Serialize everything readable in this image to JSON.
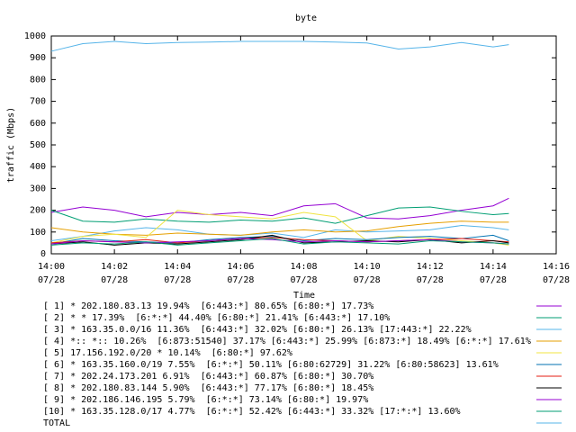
{
  "chart_data": {
    "type": "line",
    "title": "byte",
    "ylabel": "traffic (Mbps)",
    "xlabel": "Time",
    "x": [
      0,
      1,
      2,
      3,
      4,
      5,
      6,
      7,
      8,
      9,
      10,
      11,
      12,
      13,
      14,
      14.5
    ],
    "xlim": [
      0,
      16
    ],
    "xticks": [
      {
        "value": 0,
        "label": "14:00\n07/28"
      },
      {
        "value": 2,
        "label": "14:02\n07/28"
      },
      {
        "value": 4,
        "label": "14:04\n07/28"
      },
      {
        "value": 6,
        "label": "14:06\n07/28"
      },
      {
        "value": 8,
        "label": "14:08\n07/28"
      },
      {
        "value": 10,
        "label": "14:10\n07/28"
      },
      {
        "value": 12,
        "label": "14:12\n07/28"
      },
      {
        "value": 14,
        "label": "14:14\n07/28"
      },
      {
        "value": 16,
        "label": "14:16\n07/28"
      }
    ],
    "ylim": [
      0,
      1000
    ],
    "yticks": [
      0,
      100,
      200,
      300,
      400,
      500,
      600,
      700,
      800,
      900,
      1000
    ],
    "series": [
      {
        "name": "[ 1] * 202.180.83.13 19.94%  [6:443:*] 80.65% [6:80:*] 17.73%",
        "color": "#9400d3",
        "values": [
          190,
          215,
          200,
          170,
          190,
          180,
          190,
          175,
          220,
          230,
          165,
          160,
          175,
          200,
          220,
          255
        ]
      },
      {
        "name": "[ 2] * * 17.39%  [6:*:*] 44.40% [6:80:*] 21.41% [6:443:*] 17.10%",
        "color": "#009e73",
        "values": [
          200,
          150,
          145,
          160,
          150,
          145,
          155,
          150,
          165,
          140,
          175,
          210,
          215,
          195,
          180,
          185
        ]
      },
      {
        "name": "[ 3] * 163.35.0.0/16 11.36%  [6:443:*] 32.02% [6:80:*] 26.13% [17:443:*] 22.22%",
        "color": "#56b4e9",
        "values": [
          60,
          80,
          105,
          120,
          110,
          90,
          85,
          95,
          75,
          110,
          100,
          105,
          110,
          130,
          120,
          110
        ]
      },
      {
        "name": "[ 4] *:: *:: 10.26%  [6:873:51540] 37.17% [6:443:*] 25.99% [6:873:*] 18.49% [6:*:*] 17.61%",
        "color": "#e69f00",
        "values": [
          120,
          100,
          90,
          85,
          95,
          90,
          85,
          100,
          110,
          100,
          105,
          125,
          140,
          150,
          145,
          145
        ]
      },
      {
        "name": "[ 5] 17.156.192.0/20 * 10.14%  [6:80:*] 97.62%",
        "color": "#f0e442",
        "values": [
          50,
          80,
          90,
          75,
          200,
          180,
          170,
          160,
          190,
          170,
          60,
          80,
          70,
          60,
          50,
          40
        ]
      },
      {
        "name": "[ 6] * 163.35.160.0/19 7.55%  [6:*:*] 50.11% [6:80:62729] 31.22% [6:80:58623] 13.61%",
        "color": "#0072b2",
        "values": [
          45,
          70,
          60,
          55,
          50,
          65,
          75,
          80,
          60,
          70,
          65,
          75,
          80,
          70,
          85,
          60
        ]
      },
      {
        "name": "[ 7] * 202.24.173.201 6.91%  [6:443:*] 60.87% [6:80:*] 30.70%",
        "color": "#e51e10",
        "values": [
          50,
          60,
          55,
          65,
          50,
          60,
          70,
          75,
          65,
          60,
          55,
          60,
          65,
          70,
          60,
          55
        ]
      },
      {
        "name": "[ 8] * 202.180.83.144 5.90%  [6:443:*] 77.17% [6:80:*] 18.45%",
        "color": "#000000",
        "values": [
          45,
          55,
          40,
          50,
          45,
          55,
          65,
          85,
          50,
          55,
          60,
          55,
          65,
          50,
          60,
          50
        ]
      },
      {
        "name": "[ 9] * 202.186.146.195 5.79%  [6:*:*] 73.14% [6:80:*] 19.97%",
        "color": "#9400d3",
        "values": [
          45,
          60,
          55,
          50,
          55,
          60,
          70,
          65,
          55,
          60,
          55,
          60,
          65,
          55,
          50,
          45
        ]
      },
      {
        "name": "[10] * 163.35.128.0/17 4.77%  [6:*:*] 52.42% [6:443:*] 33.32% [17:*:*] 13.60%",
        "color": "#009e73",
        "values": [
          40,
          50,
          45,
          55,
          40,
          50,
          60,
          70,
          45,
          55,
          50,
          45,
          60,
          55,
          50,
          45
        ]
      },
      {
        "name": "TOTAL",
        "color": "#56b4e9",
        "values": [
          930,
          965,
          975,
          965,
          970,
          972,
          975,
          975,
          975,
          972,
          968,
          940,
          950,
          970,
          950,
          960
        ]
      }
    ]
  }
}
